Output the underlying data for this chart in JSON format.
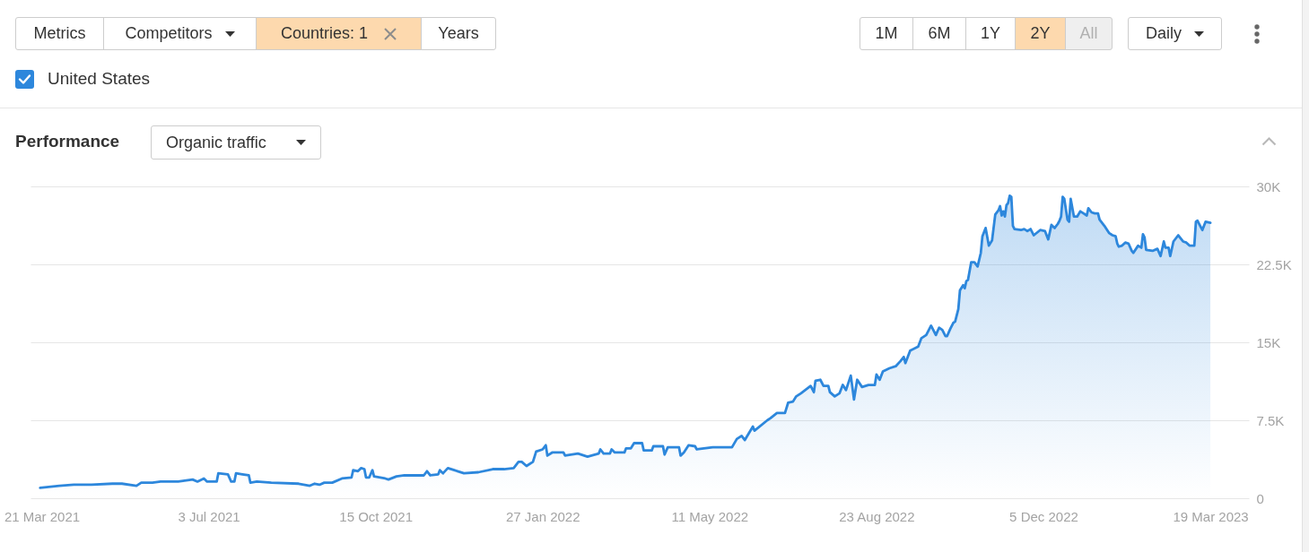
{
  "chart_data": {
    "type": "area",
    "title": "Performance",
    "subtitle": "Organic traffic",
    "annotations": [
      "Metrics",
      "Competitors",
      "Countries: 1",
      "Years",
      "1M",
      "6M",
      "1Y",
      "2Y",
      "All",
      "Daily"
    ],
    "x": [
      "2021-03-20",
      "2021-04-01",
      "2021-04-10",
      "2021-04-21",
      "2021-05-04",
      "2021-05-10",
      "2021-05-19",
      "2021-05-22",
      "2021-05-29",
      "2021-06-03",
      "2021-06-14",
      "2021-06-23",
      "2021-06-26",
      "2021-06-30",
      "2021-07-02",
      "2021-07-08",
      "2021-07-09",
      "2021-07-15",
      "2021-07-17",
      "2021-07-19",
      "2021-07-20",
      "2021-07-24",
      "2021-07-28",
      "2021-07-29",
      "2021-08-02",
      "2021-08-11",
      "2021-08-28",
      "2021-09-04",
      "2021-09-07",
      "2021-09-10",
      "2021-09-13",
      "2021-09-18",
      "2021-09-24",
      "2021-09-30",
      "2021-10-01",
      "2021-10-04",
      "2021-10-06",
      "2021-10-08",
      "2021-10-09",
      "2021-10-11",
      "2021-10-13",
      "2021-10-14",
      "2021-10-21",
      "2021-10-23",
      "2021-10-28",
      "2021-11-02",
      "2021-11-14",
      "2021-11-16",
      "2021-11-18",
      "2021-11-23",
      "2021-11-24",
      "2021-11-26",
      "2021-11-29",
      "2021-12-03",
      "2021-12-09",
      "2021-12-18",
      "2021-12-27",
      "2022-01-03",
      "2022-01-09",
      "2022-01-12",
      "2022-01-14",
      "2022-01-17",
      "2022-01-21",
      "2022-01-23",
      "2022-01-27",
      "2022-01-29",
      "2022-01-30",
      "2022-02-02",
      "2022-02-09",
      "2022-02-10",
      "2022-02-18",
      "2022-02-24",
      "2022-03-03",
      "2022-03-04",
      "2022-03-06",
      "2022-03-10",
      "2022-03-11",
      "2022-03-13",
      "2022-03-19",
      "2022-03-20",
      "2022-03-23",
      "2022-03-25",
      "2022-03-30",
      "2022-03-31",
      "2022-04-05",
      "2022-04-06",
      "2022-04-12",
      "2022-04-13",
      "2022-04-15",
      "2022-04-22",
      "2022-04-23",
      "2022-04-25",
      "2022-04-28",
      "2022-05-02",
      "2022-05-03",
      "2022-05-13",
      "2022-05-25",
      "2022-05-28",
      "2022-05-31",
      "2022-06-02",
      "2022-06-07",
      "2022-06-08",
      "2022-06-16",
      "2022-06-18",
      "2022-06-22",
      "2022-06-27",
      "2022-06-29",
      "2022-07-02",
      "2022-07-04",
      "2022-07-07",
      "2022-07-13",
      "2022-07-15",
      "2022-07-16",
      "2022-07-19",
      "2022-07-21",
      "2022-07-24",
      "2022-07-25",
      "2022-07-28",
      "2022-07-31",
      "2022-08-02",
      "2022-08-04",
      "2022-08-07",
      "2022-08-09",
      "2022-08-11",
      "2022-08-14",
      "2022-08-18",
      "2022-08-22",
      "2022-08-23",
      "2022-08-25",
      "2022-08-27",
      "2022-08-31",
      "2022-09-04",
      "2022-09-07",
      "2022-09-09",
      "2022-09-10",
      "2022-09-13",
      "2022-09-18",
      "2022-09-20",
      "2022-09-23",
      "2022-09-26",
      "2022-09-29",
      "2022-10-01",
      "2022-10-03",
      "2022-10-05",
      "2022-10-06",
      "2022-10-08",
      "2022-10-10",
      "2022-10-11",
      "2022-10-13",
      "2022-10-14",
      "2022-10-16",
      "2022-10-17",
      "2022-10-18",
      "2022-10-19",
      "2022-10-21",
      "2022-10-23",
      "2022-10-25",
      "2022-10-27",
      "2022-10-28",
      "2022-10-30",
      "2022-11-01",
      "2022-11-03",
      "2022-11-05",
      "2022-11-07",
      "2022-11-08",
      "2022-11-09",
      "2022-11-10",
      "2022-11-11",
      "2022-11-12",
      "2022-11-13",
      "2022-11-14",
      "2022-11-15",
      "2022-11-16",
      "2022-11-17",
      "2022-11-21",
      "2022-11-23",
      "2022-11-25",
      "2022-11-27",
      "2022-11-29",
      "2022-12-03",
      "2022-12-06",
      "2022-12-08",
      "2022-12-10",
      "2022-12-12",
      "2022-12-14",
      "2022-12-15",
      "2022-12-16",
      "2022-12-17",
      "2022-12-18",
      "2022-12-20",
      "2022-12-21",
      "2022-12-22",
      "2022-12-24",
      "2022-12-26",
      "2022-12-28",
      "2022-12-30",
      "2023-01-01",
      "2023-01-02",
      "2023-01-04",
      "2023-01-06",
      "2023-01-08",
      "2023-01-09",
      "2023-01-12",
      "2023-01-15",
      "2023-01-17",
      "2023-01-19",
      "2023-01-20",
      "2023-01-21",
      "2023-01-23",
      "2023-01-25",
      "2023-01-27",
      "2023-01-29",
      "2023-01-30",
      "2023-02-02",
      "2023-02-04",
      "2023-02-05",
      "2023-02-06",
      "2023-02-07",
      "2023-02-11",
      "2023-02-14",
      "2023-02-16",
      "2023-02-18",
      "2023-02-19",
      "2023-02-21",
      "2023-02-22",
      "2023-02-24",
      "2023-02-27",
      "2023-03-02",
      "2023-03-04",
      "2023-03-06",
      "2023-03-09",
      "2023-03-10",
      "2023-03-11",
      "2023-03-14",
      "2023-03-16",
      "2023-03-19"
    ],
    "series": [
      {
        "name": "United States",
        "color": "#2d87dc",
        "values": [
          1000,
          1200,
          1300,
          1300,
          1400,
          1400,
          1200,
          1500,
          1500,
          1600,
          1600,
          1800,
          1600,
          1900,
          1600,
          1600,
          2400,
          2300,
          1600,
          1600,
          2400,
          2300,
          2200,
          1500,
          1600,
          1500,
          1400,
          1200,
          1400,
          1300,
          1500,
          1500,
          1900,
          2000,
          2700,
          2600,
          2900,
          2800,
          2000,
          2000,
          2700,
          2100,
          1900,
          1800,
          2100,
          2200,
          2200,
          2600,
          2200,
          2300,
          2700,
          2400,
          2900,
          2700,
          2400,
          2500,
          2800,
          2800,
          2900,
          3500,
          3500,
          3100,
          3500,
          4500,
          4700,
          5100,
          4100,
          4400,
          4400,
          4100,
          4300,
          4000,
          4300,
          4700,
          4300,
          4300,
          4700,
          4400,
          4400,
          4800,
          4800,
          5300,
          5300,
          4600,
          4600,
          5000,
          5000,
          4200,
          4900,
          4900,
          4100,
          4400,
          5100,
          5000,
          4700,
          4900,
          4900,
          5700,
          6000,
          5600,
          6900,
          6500,
          7500,
          7700,
          8200,
          8200,
          9200,
          9300,
          9800,
          10100,
          10800,
          10200,
          11300,
          11400,
          10800,
          10800,
          10200,
          9800,
          10100,
          10900,
          10400,
          11800,
          9500,
          11400,
          10700,
          10900,
          10900,
          11900,
          11400,
          12200,
          12500,
          12700,
          13200,
          13600,
          13000,
          14200,
          14600,
          15400,
          15700,
          16600,
          15700,
          16400,
          16200,
          15600,
          15600,
          16300,
          16900,
          17000,
          18200,
          20000,
          20500,
          20200,
          20900,
          21000,
          22700,
          22700,
          22300,
          23600,
          25200,
          26000,
          24300,
          24800,
          27300,
          27700,
          28100,
          27200,
          27600,
          27100,
          28200,
          28400,
          29100,
          29000,
          26200,
          25900,
          25800,
          25900,
          25700,
          25900,
          25300,
          25800,
          25700,
          24900,
          26300,
          26000,
          26400,
          26700,
          27100,
          29000,
          28800,
          26800,
          26600,
          28800,
          27100,
          27100,
          27600,
          27400,
          27200,
          27900,
          27500,
          27400,
          27400,
          26800,
          26200,
          25500,
          25300,
          25200,
          24500,
          24200,
          24300,
          24600,
          24500,
          23800,
          23600,
          24300,
          24100,
          25400,
          25100,
          23900,
          23800,
          24000,
          23300,
          24700,
          24100,
          24100,
          23300,
          24700,
          25300,
          24700,
          24600,
          24300,
          24300,
          26600,
          26700,
          25800,
          26600,
          26500
        ]
      }
    ],
    "xlim": [
      "2021-03-14",
      "2023-04-12"
    ],
    "xticks": [
      {
        "value": "2021-03-21",
        "label": "21 Mar 2021"
      },
      {
        "value": "2021-07-03",
        "label": "3 Jul 2021"
      },
      {
        "value": "2021-10-15",
        "label": "15 Oct 2021"
      },
      {
        "value": "2022-01-27",
        "label": "27 Jan 2022"
      },
      {
        "value": "2022-05-11",
        "label": "11 May 2022"
      },
      {
        "value": "2022-08-23",
        "label": "23 Aug 2022"
      },
      {
        "value": "2022-12-05",
        "label": "5 Dec 2022"
      },
      {
        "value": "2023-03-19",
        "label": "19 Mar 2023"
      }
    ],
    "ylim": [
      0,
      30000
    ],
    "yticks": [
      0,
      {
        "value": 7500,
        "label": "7.5K"
      },
      {
        "value": 15000,
        "label": "15K"
      },
      {
        "value": 22500,
        "label": "22.5K"
      },
      {
        "value": 30000,
        "label": "30K"
      }
    ],
    "grid": "y",
    "legend": "top left"
  }
}
